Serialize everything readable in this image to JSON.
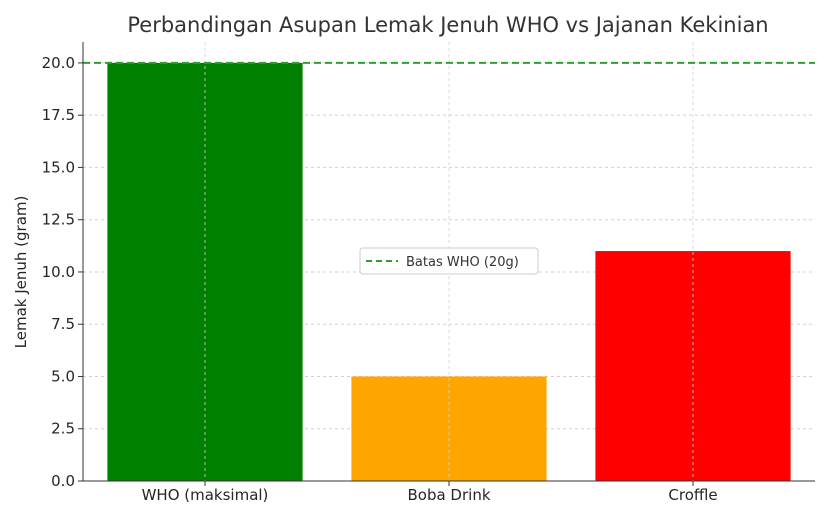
{
  "chart_data": {
    "type": "bar",
    "title": "Perbandingan Asupan Lemak Jenuh WHO vs Jajanan Kekinian",
    "xlabel": "",
    "ylabel": "Lemak Jenuh (gram)",
    "categories": [
      "WHO (maksimal)",
      "Boba Drink",
      "Croffle"
    ],
    "values": [
      20,
      5,
      11
    ],
    "colors": [
      "#008000",
      "#FFA500",
      "#FF0000"
    ],
    "ylim": [
      0,
      21
    ],
    "yticks": [
      "0.0",
      "2.5",
      "5.0",
      "7.5",
      "10.0",
      "12.5",
      "15.0",
      "17.5",
      "20.0"
    ],
    "grid": true,
    "reference_line": {
      "value": 20,
      "label": "Batas WHO (20g)",
      "color": "#2ca02c",
      "style": "dashed"
    },
    "legend": {
      "position": "center-right",
      "entries": [
        "Batas WHO (20g)"
      ]
    }
  }
}
